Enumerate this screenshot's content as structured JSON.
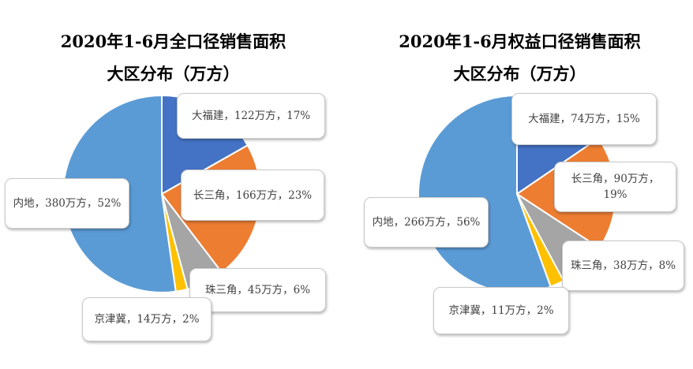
{
  "chart_data": [
    {
      "type": "pie",
      "title": "2020年1-6月全口径销售面积",
      "subtitle": "大区分布（万方）",
      "categories": [
        "大福建",
        "长三角",
        "珠三角",
        "京津冀",
        "内地"
      ],
      "values": [
        122,
        166,
        45,
        14,
        380
      ],
      "data_labels": [
        "大福建，122万方，17%",
        "长三角，166万方，23%",
        "珠三角，45万方，6%",
        "京津冀，14万方，2%",
        "内地，380万方，52%"
      ],
      "colors": [
        "#4472C4",
        "#ED7D31",
        "#A5A5A5",
        "#FFC000",
        "#5B9BD5"
      ],
      "legend": "none"
    },
    {
      "type": "pie",
      "title": "2020年1-6月权益口径销售面积",
      "subtitle": "大区分布（万方）",
      "categories": [
        "大福建",
        "长三角",
        "珠三角",
        "京津冀",
        "内地"
      ],
      "values": [
        74,
        90,
        38,
        11,
        266
      ],
      "data_labels": [
        "大福建，74万方，15%",
        "长三角，90万方，19%",
        "珠三角，38万方，8%",
        "京津冀，11万方，2%",
        "内地，266万方，56%"
      ],
      "colors": [
        "#4472C4",
        "#ED7D31",
        "#A5A5A5",
        "#FFC000",
        "#5B9BD5"
      ],
      "legend": "none"
    }
  ]
}
